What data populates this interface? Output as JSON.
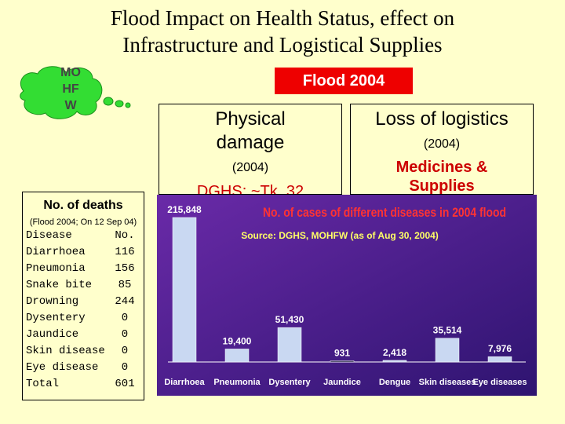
{
  "title": {
    "line1": "Flood Impact on Health Status, effect on",
    "line2": "Infrastructure and Logistical Supplies"
  },
  "cloud": {
    "lines": [
      "MO",
      "HF",
      "W"
    ]
  },
  "flood_banner": "Flood 2004",
  "physical": {
    "heading1": "Physical",
    "heading2": "damage",
    "sub": "(2004)",
    "dghs": "DGHS: ~Tk. 32"
  },
  "logistics": {
    "heading": "Loss of logistics",
    "sub": "(2004)",
    "medicines1": "Medicines &",
    "medicines2": "Supplies"
  },
  "deaths": {
    "title": "No. of deaths",
    "subtitle": "(Flood 2004; On 12 Sep 04)",
    "header": {
      "label": "Disease",
      "value": "No."
    },
    "rows": [
      {
        "label": "Diarrhoea",
        "value": "116"
      },
      {
        "label": "Pneumonia",
        "value": "156"
      },
      {
        "label": "Snake bite",
        "value": "85"
      },
      {
        "label": "Drowning",
        "value": "244"
      },
      {
        "label": "Dysentery",
        "value": "0"
      },
      {
        "label": "Jaundice",
        "value": "0"
      },
      {
        "label": "Skin disease",
        "value": "0"
      },
      {
        "label": "Eye disease",
        "value": "0"
      }
    ],
    "total": {
      "label": "Total",
      "value": "601"
    }
  },
  "colors": {
    "background": "#ffffcc",
    "banner": "#ee0000",
    "cloud": "#33dd33",
    "chart_bg": "#4a1d8c",
    "bar": "#c9d8f2",
    "chart_title": "#ff3333",
    "source": "#ffff66"
  },
  "chart_data": {
    "type": "bar",
    "title": "No. of cases of different diseases in 2004 flood",
    "source": "Source: DGHS, MOHFW (as of Aug 30, 2004)",
    "categories": [
      "Diarrhoea",
      "Pneumonia",
      "Dysentery",
      "Jaundice",
      "Dengue",
      "Skin diseases",
      "Eye diseases"
    ],
    "values": [
      215848,
      19400,
      51430,
      931,
      2418,
      35514,
      7976
    ],
    "value_labels": [
      "215,848",
      "19,400",
      "51,430",
      "931",
      "2,418",
      "35,514",
      "7,976"
    ],
    "ylim": [
      0,
      215848
    ],
    "grid": false
  }
}
